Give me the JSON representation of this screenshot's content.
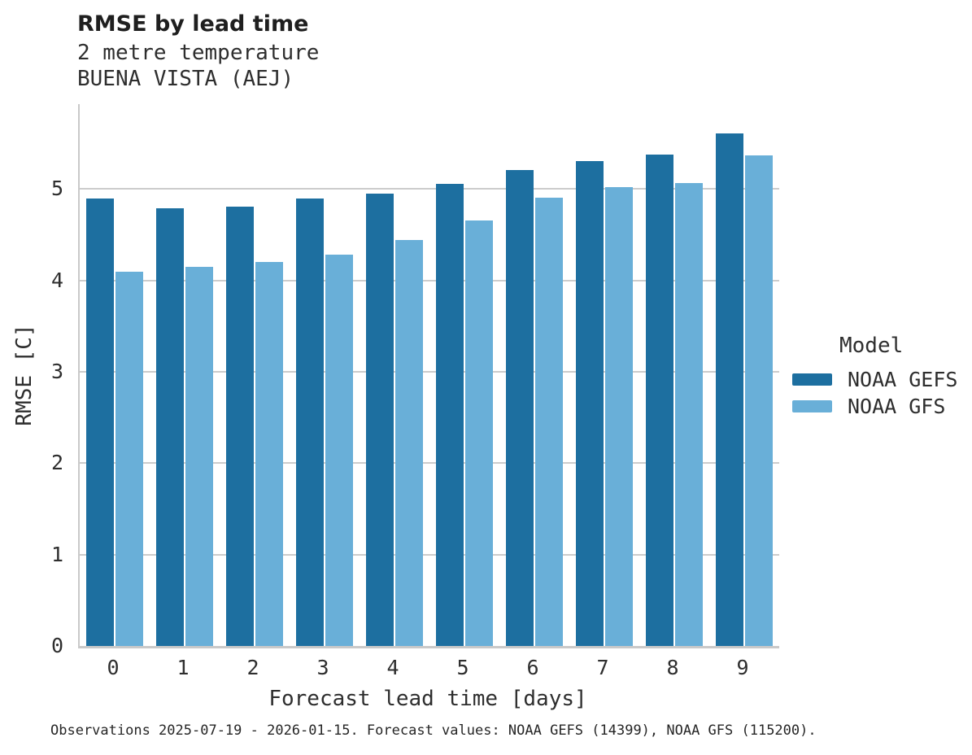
{
  "figure": {
    "title": "RMSE by lead time",
    "subtitle_line1": "2 metre temperature",
    "subtitle_line2": "BUENA VISTA (AEJ)",
    "caption": "Observations 2025-07-19 - 2026-01-15. Forecast values: NOAA GEFS (14399), NOAA GFS (115200)."
  },
  "chart_data": {
    "type": "bar",
    "title": "RMSE by lead time",
    "subtitle": [
      "2 metre temperature",
      "BUENA VISTA (AEJ)"
    ],
    "xlabel": "Forecast lead time [days]",
    "ylabel": "RMSE [C]",
    "categories": [
      "0",
      "1",
      "2",
      "3",
      "4",
      "5",
      "6",
      "7",
      "8",
      "9"
    ],
    "series": [
      {
        "name": "NOAA GEFS",
        "color": "#1d6fa0",
        "values": [
          4.9,
          4.79,
          4.81,
          4.9,
          4.95,
          5.06,
          5.21,
          5.31,
          5.38,
          5.61
        ]
      },
      {
        "name": "NOAA GFS",
        "color": "#69afd8",
        "values": [
          4.1,
          4.15,
          4.2,
          4.28,
          4.44,
          4.66,
          4.91,
          5.02,
          5.07,
          5.37
        ]
      }
    ],
    "ylim": [
      0,
      5.93
    ],
    "yticks": [
      0,
      1,
      2,
      3,
      4,
      5
    ],
    "grid": true,
    "gridline_color": "#cccccc",
    "legend_title": "Model",
    "legend_position": "right"
  },
  "legend": {
    "title": "Model",
    "items": [
      {
        "label": "NOAA GEFS",
        "color": "#1d6fa0"
      },
      {
        "label": "NOAA GFS",
        "color": "#69afd8"
      }
    ]
  }
}
